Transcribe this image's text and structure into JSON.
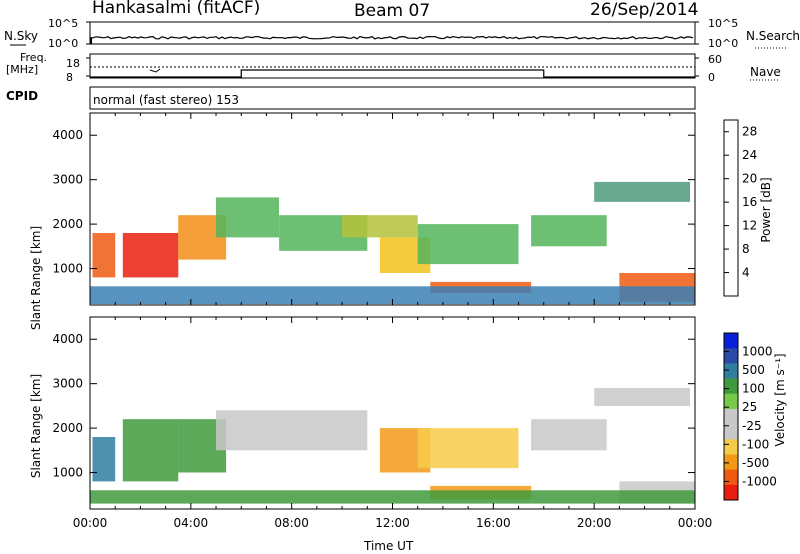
{
  "header": {
    "station": "Hankasalmi (fitACF)",
    "beam": "Beam 07",
    "date": "26/Sep/2014"
  },
  "noise_panel": {
    "label_left": "N.Sky",
    "label_right": "N.Search",
    "ticks_left": [
      "10^5",
      "10^0"
    ],
    "ticks_right": [
      "10^5",
      "10^0"
    ]
  },
  "freq_panel": {
    "label_left_1": "Freq.",
    "label_left_2": "[MHz]",
    "ticks_left": [
      "18",
      "8"
    ],
    "label_right": "Nave",
    "ticks_right": [
      "60",
      "0"
    ]
  },
  "cpid": {
    "label": "CPID",
    "value": "normal (fast stereo) 153"
  },
  "colors": {
    "power": [
      "#0a1fd8",
      "#2448a8",
      "#3b7fb4",
      "#4e9a7c",
      "#53b45a",
      "#b4c23c",
      "#f2c21c",
      "#f28e18",
      "#ee5a12",
      "#e81e0e"
    ],
    "velocity": [
      "#e81e0e",
      "#ee5a12",
      "#f29a18",
      "#f6cb4a",
      "#c8c8c8",
      "#c8c8c8",
      "#78c84a",
      "#3f9a3c",
      "#2f7ea0",
      "#2a4aa6",
      "#0a1fd8"
    ]
  },
  "chart_data": [
    {
      "type": "heatmap",
      "title": "",
      "xlabel": "",
      "ylabel": "Slant Range [km]",
      "ylim": [
        180,
        4500
      ],
      "y_ticks": [
        1000,
        2000,
        3000,
        4000
      ],
      "colorbar": {
        "label": "Power [dB]",
        "ticks": [
          4,
          8,
          12,
          16,
          20,
          24,
          28
        ],
        "range": [
          0,
          30
        ]
      },
      "echo_regions": [
        {
          "t0": 0.1,
          "t1": 1.0,
          "r0": 800,
          "r1": 1800,
          "v": 25
        },
        {
          "t0": 1.3,
          "t1": 3.5,
          "r0": 800,
          "r1": 1800,
          "v": 28
        },
        {
          "t0": 3.5,
          "t1": 5.4,
          "r0": 1200,
          "r1": 2200,
          "v": 22
        },
        {
          "t0": 5.0,
          "t1": 7.5,
          "r0": 1700,
          "r1": 2600,
          "v": 14
        },
        {
          "t0": 7.5,
          "t1": 11.0,
          "r0": 1400,
          "r1": 2200,
          "v": 12
        },
        {
          "t0": 10.0,
          "t1": 13.0,
          "r0": 1700,
          "r1": 2200,
          "v": 16
        },
        {
          "t0": 11.5,
          "t1": 13.5,
          "r0": 900,
          "r1": 1700,
          "v": 18
        },
        {
          "t0": 13.0,
          "t1": 17.0,
          "r0": 1100,
          "r1": 2000,
          "v": 14
        },
        {
          "t0": 13.5,
          "t1": 17.5,
          "r0": 450,
          "r1": 700,
          "v": 24
        },
        {
          "t0": 17.5,
          "t1": 20.5,
          "r0": 1500,
          "r1": 2200,
          "v": 14
        },
        {
          "t0": 20.0,
          "t1": 23.8,
          "r0": 2500,
          "r1": 2950,
          "v": 10
        },
        {
          "t0": 21.0,
          "t1": 24.0,
          "r0": 250,
          "r1": 900,
          "v": 26
        },
        {
          "t0": 0.0,
          "t1": 24.0,
          "r0": 200,
          "r1": 600,
          "v": 8
        }
      ]
    },
    {
      "type": "heatmap",
      "title": "",
      "xlabel": "Time UT",
      "ylabel": "Slant Range [km]",
      "ylim": [
        180,
        4500
      ],
      "y_ticks": [
        1000,
        2000,
        3000,
        4000
      ],
      "x_tick_labels": [
        "00:00",
        "04:00",
        "08:00",
        "12:00",
        "16:00",
        "20:00",
        "00:00"
      ],
      "colorbar": {
        "label": "Velocity [m s⁻¹]",
        "ticks": [
          "1000",
          "500",
          "100",
          "25",
          "-25",
          "-100",
          "-500",
          "-1000"
        ]
      },
      "echo_regions": [
        {
          "t0": 0.1,
          "t1": 1.0,
          "r0": 800,
          "r1": 1800,
          "v": 300
        },
        {
          "t0": 1.3,
          "t1": 3.5,
          "r0": 800,
          "r1": 2200,
          "v": 60
        },
        {
          "t0": 3.5,
          "t1": 5.4,
          "r0": 1000,
          "r1": 2200,
          "v": 40
        },
        {
          "t0": 5.0,
          "t1": 11.0,
          "r0": 1500,
          "r1": 2400,
          "v": 0
        },
        {
          "t0": 11.5,
          "t1": 13.5,
          "r0": 1000,
          "r1": 2000,
          "v": -200
        },
        {
          "t0": 13.0,
          "t1": 17.0,
          "r0": 1100,
          "r1": 2000,
          "v": -80
        },
        {
          "t0": 13.5,
          "t1": 17.5,
          "r0": 400,
          "r1": 700,
          "v": -150
        },
        {
          "t0": 17.5,
          "t1": 20.5,
          "r0": 1500,
          "r1": 2200,
          "v": 0
        },
        {
          "t0": 20.0,
          "t1": 23.8,
          "r0": 2500,
          "r1": 2900,
          "v": 0
        },
        {
          "t0": 21.0,
          "t1": 24.0,
          "r0": 300,
          "r1": 800,
          "v": 0
        },
        {
          "t0": 0.0,
          "t1": 24.0,
          "r0": 300,
          "r1": 600,
          "v": 60
        }
      ]
    }
  ]
}
